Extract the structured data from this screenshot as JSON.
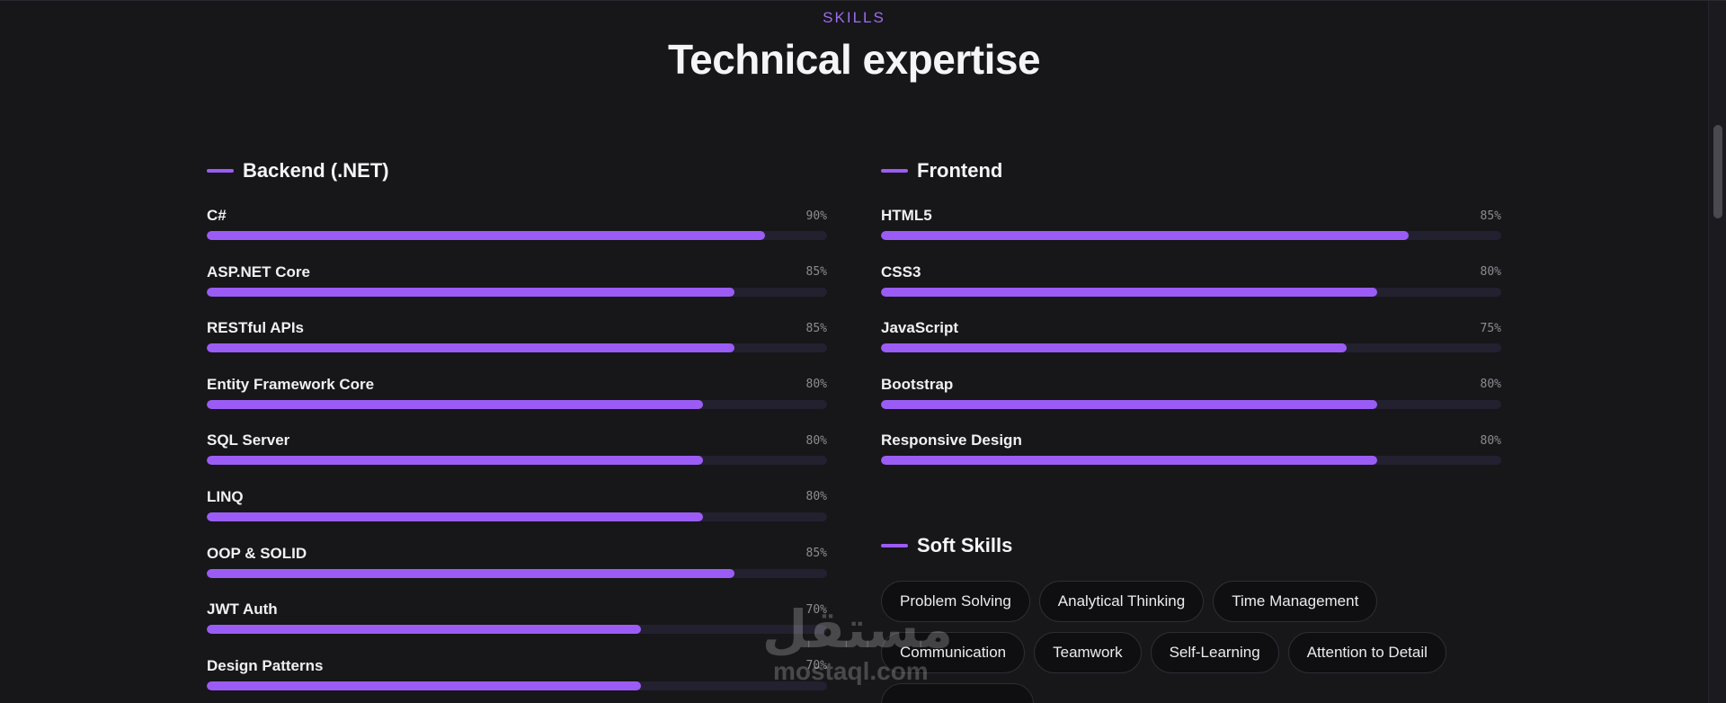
{
  "section": {
    "eyebrow": "SKILLS",
    "title": "Technical expertise"
  },
  "colors": {
    "accent": "#9b5cf6",
    "background": "#171619",
    "track": "#232130"
  },
  "backend": {
    "title": "Backend (.NET)",
    "skills": [
      {
        "name": "C#",
        "percent_label": "90%",
        "level": 0.9
      },
      {
        "name": "ASP.NET Core",
        "percent_label": "85%",
        "level": 0.85
      },
      {
        "name": "RESTful APIs",
        "percent_label": "85%",
        "level": 0.85
      },
      {
        "name": "Entity Framework Core",
        "percent_label": "80%",
        "level": 0.8
      },
      {
        "name": "SQL Server",
        "percent_label": "80%",
        "level": 0.8
      },
      {
        "name": "LINQ",
        "percent_label": "80%",
        "level": 0.8
      },
      {
        "name": "OOP & SOLID",
        "percent_label": "85%",
        "level": 0.85
      },
      {
        "name": "JWT Auth",
        "percent_label": "70%",
        "level": 0.7
      },
      {
        "name": "Design Patterns",
        "percent_label": "70%",
        "level": 0.7
      }
    ]
  },
  "frontend": {
    "title": "Frontend",
    "skills": [
      {
        "name": "HTML5",
        "percent_label": "85%",
        "level": 0.85
      },
      {
        "name": "CSS3",
        "percent_label": "80%",
        "level": 0.8
      },
      {
        "name": "JavaScript",
        "percent_label": "75%",
        "level": 0.75
      },
      {
        "name": "Bootstrap",
        "percent_label": "80%",
        "level": 0.8
      },
      {
        "name": "Responsive Design",
        "percent_label": "80%",
        "level": 0.8
      }
    ]
  },
  "soft_skills": {
    "title": "Soft Skills",
    "chips": [
      "Problem Solving",
      "Analytical Thinking",
      "Time Management",
      "Communication",
      "Teamwork",
      "Self-Learning",
      "Attention to Detail",
      ""
    ]
  },
  "watermark": {
    "arabic": "مستقل",
    "latin": "mostaql.com"
  }
}
